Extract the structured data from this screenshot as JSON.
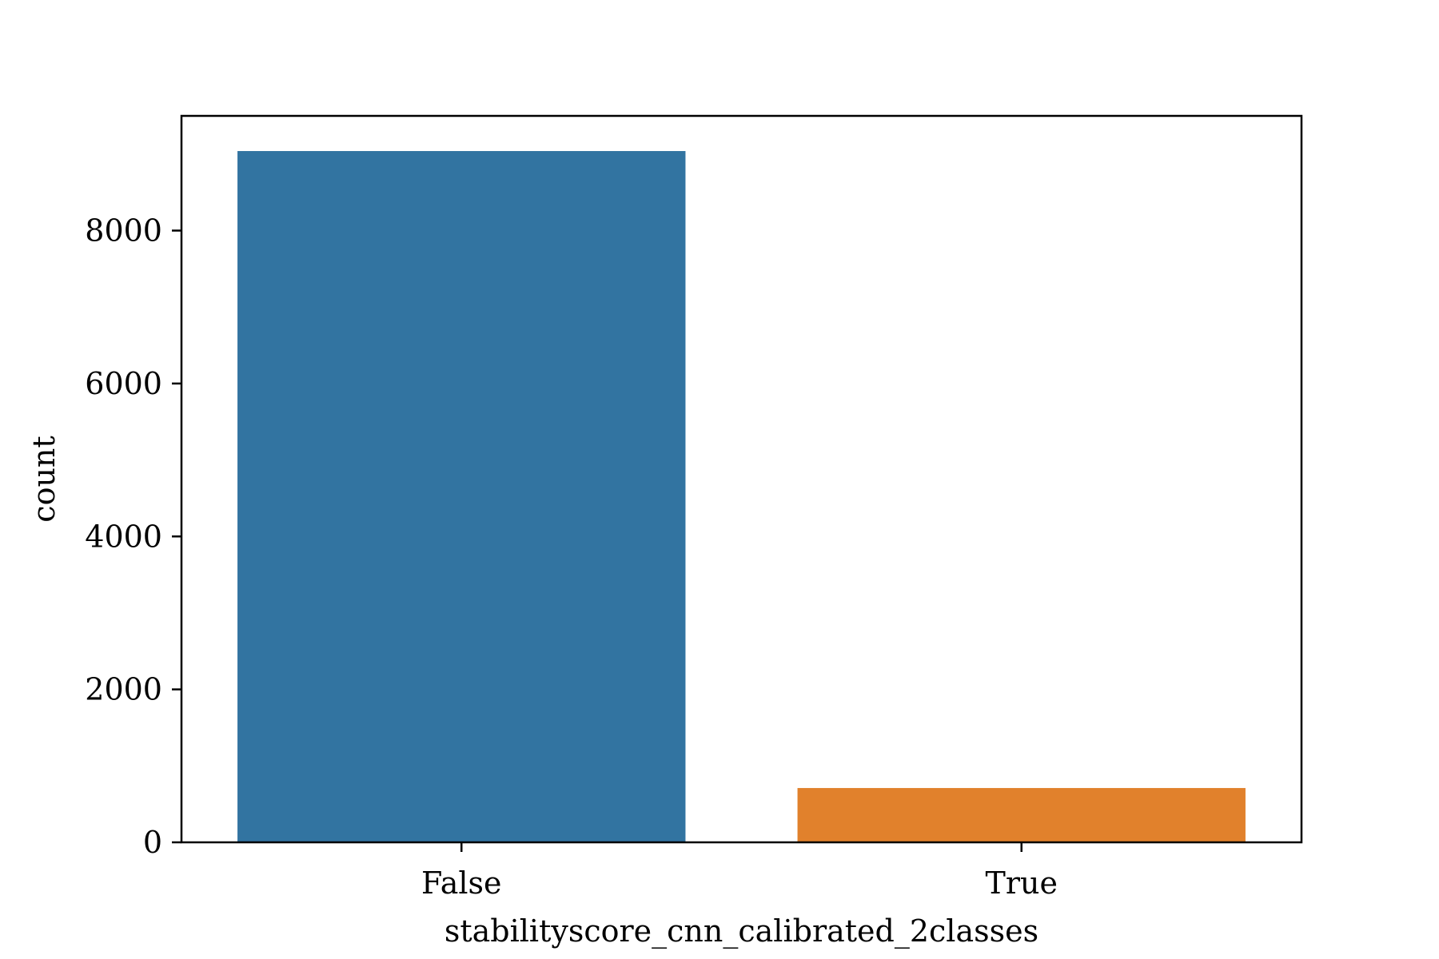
{
  "chart_data": {
    "type": "bar",
    "title": "",
    "xlabel": "stabilityscore_cnn_calibrated_2classes",
    "ylabel": "count",
    "categories": [
      "False",
      "True"
    ],
    "values": [
      9040,
      710
    ],
    "ylim": [
      0,
      9500
    ],
    "yticks": [
      0,
      2000,
      4000,
      6000,
      8000
    ],
    "ytick_labels": [
      "0",
      "2000",
      "4000",
      "6000",
      "8000"
    ],
    "bar_colors": [
      "#3274a1",
      "#e1812c"
    ],
    "grid": false,
    "legend": "none"
  }
}
